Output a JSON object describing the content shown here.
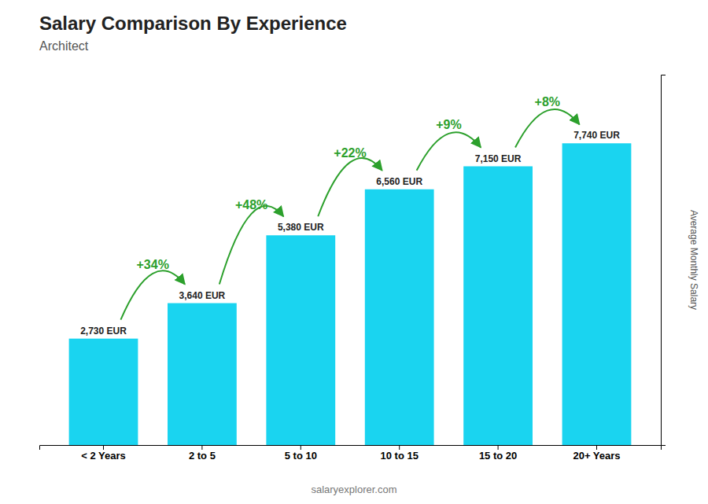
{
  "chart_data": {
    "type": "bar",
    "title": "Salary Comparison By Experience",
    "subtitle": "Architect",
    "y_label": "Average Monthly Salary",
    "categories": [
      "< 2 Years",
      "2 to 5",
      "5 to 10",
      "10 to 15",
      "15 to 20",
      "20+ Years"
    ],
    "values": [
      2730,
      3640,
      5380,
      6560,
      7150,
      7740
    ],
    "value_labels": [
      "2,730 EUR",
      "3,640 EUR",
      "5,380 EUR",
      "6,560 EUR",
      "7,150 EUR",
      "7,740 EUR"
    ],
    "data_labels": true,
    "annotations": [
      "+34%",
      "+48%",
      "+22%",
      "+9%",
      "+8%"
    ],
    "color": "#1ad4f0",
    "ylim": [
      0,
      9500
    ],
    "tick_labels": "x",
    "grid": false,
    "footer": "salaryexplorer.com"
  }
}
